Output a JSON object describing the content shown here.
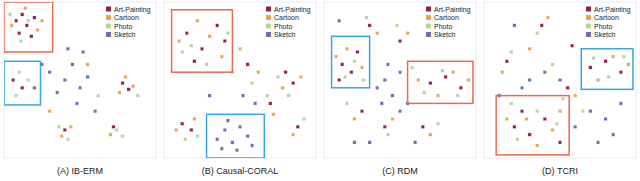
{
  "chart_data": [
    {
      "type": "scatter",
      "title": "(A) IB-ERM",
      "xlim": [
        0,
        100
      ],
      "ylim": [
        0,
        100
      ],
      "tick_labels": false,
      "legend": "upper right",
      "series": [
        {
          "name": "Art-Painting",
          "color": "#8c2352",
          "marker": "square",
          "x": [
            8,
            12,
            15,
            20,
            10,
            18,
            6,
            12,
            78,
            82,
            40,
            72
          ],
          "y": [
            88,
            92,
            85,
            90,
            80,
            78,
            50,
            45,
            48,
            44,
            18,
            20
          ]
        },
        {
          "name": "Cartoon",
          "color": "#e8a857",
          "marker": "square",
          "x": [
            5,
            22,
            14,
            25,
            80,
            85,
            76,
            38,
            44,
            70,
            55,
            30
          ],
          "y": [
            85,
            82,
            96,
            88,
            52,
            46,
            42,
            14,
            20,
            15,
            60,
            30
          ]
        },
        {
          "name": "Photo",
          "color": "#b5d89a",
          "marker": "square",
          "x": [
            16,
            11,
            4,
            10,
            16,
            8,
            42,
            36,
            78,
            74,
            62,
            88
          ],
          "y": [
            88,
            75,
            92,
            55,
            50,
            40,
            12,
            20,
            14,
            18,
            40,
            40
          ]
        },
        {
          "name": "Sketch",
          "color": "#6f6fb0",
          "marker": "square",
          "x": [
            30,
            40,
            45,
            50,
            35,
            55,
            48,
            20,
            60,
            42,
            52,
            25
          ],
          "y": [
            55,
            50,
            60,
            45,
            42,
            52,
            35,
            45,
            30,
            70,
            68,
            60
          ]
        }
      ],
      "highlights": [
        {
          "color": "#e86a50",
          "x": [
            0,
            32
          ],
          "y": [
            68,
            100
          ]
        },
        {
          "color": "#35a6de",
          "x": [
            0,
            24
          ],
          "y": [
            34,
            62
          ]
        }
      ]
    },
    {
      "type": "scatter",
      "title": "(B) Causal-CORAL",
      "xlim": [
        0,
        100
      ],
      "ylim": [
        0,
        100
      ],
      "tick_labels": false,
      "legend": "upper right",
      "series": [
        {
          "name": "Art-Painting",
          "color": "#8c2352",
          "marker": "square",
          "x": [
            15,
            25,
            35,
            20,
            80,
            85,
            12,
            18,
            55,
            40,
            88,
            70
          ],
          "y": [
            80,
            70,
            85,
            62,
            55,
            48,
            22,
            18,
            60,
            75,
            20,
            35
          ]
        },
        {
          "name": "Cartoon",
          "color": "#e8a857",
          "marker": "square",
          "x": [
            10,
            30,
            38,
            22,
            78,
            90,
            8,
            20,
            62,
            85,
            50,
            72
          ],
          "y": [
            75,
            78,
            65,
            88,
            45,
            52,
            18,
            25,
            55,
            15,
            70,
            28
          ]
        },
        {
          "name": "Photo",
          "color": "#b5d89a",
          "marker": "square",
          "x": [
            18,
            28,
            42,
            12,
            82,
            75,
            14,
            22,
            58,
            92,
            45,
            68
          ],
          "y": [
            72,
            60,
            80,
            68,
            40,
            52,
            12,
            14,
            48,
            25,
            55,
            40
          ]
        },
        {
          "name": "Sketch",
          "color": "#6f6fb0",
          "marker": "square",
          "x": [
            35,
            40,
            45,
            50,
            55,
            42,
            58,
            48,
            38,
            30,
            60,
            52
          ],
          "y": [
            12,
            18,
            10,
            20,
            14,
            24,
            8,
            5,
            6,
            40,
            35,
            40
          ]
        }
      ],
      "highlights": [
        {
          "color": "#e86a50",
          "x": [
            5,
            45
          ],
          "y": [
            55,
            95
          ]
        },
        {
          "color": "#35a6de",
          "x": [
            28,
            66
          ],
          "y": [
            0,
            28
          ]
        }
      ]
    },
    {
      "type": "scatter",
      "title": "(C) RDM",
      "xlim": [
        0,
        100
      ],
      "ylim": [
        0,
        100
      ],
      "tick_labels": false,
      "legend": "upper right",
      "series": [
        {
          "name": "Art-Painting",
          "color": "#8c2352",
          "marker": "square",
          "x": [
            12,
            18,
            22,
            10,
            70,
            80,
            90,
            40,
            30,
            50,
            65,
            25
          ],
          "y": [
            60,
            55,
            68,
            50,
            48,
            52,
            45,
            20,
            85,
            75,
            20,
            30
          ]
        },
        {
          "name": "Cartoon",
          "color": "#e8a857",
          "marker": "square",
          "x": [
            15,
            25,
            8,
            62,
            75,
            85,
            95,
            45,
            35,
            55,
            70,
            20
          ],
          "y": [
            70,
            58,
            65,
            50,
            40,
            55,
            50,
            25,
            80,
            80,
            15,
            25
          ]
        },
        {
          "name": "Photo",
          "color": "#b5d89a",
          "marker": "square",
          "x": [
            20,
            14,
            26,
            66,
            78,
            88,
            58,
            42,
            28,
            48,
            75,
            15
          ],
          "y": [
            62,
            52,
            50,
            42,
            56,
            40,
            58,
            15,
            90,
            85,
            22,
            35
          ]
        },
        {
          "name": "Sketch",
          "color": "#6f6fb0",
          "marker": "square",
          "x": [
            40,
            45,
            35,
            50,
            30,
            50,
            60,
            20,
            42,
            55,
            38,
            10
          ],
          "y": [
            50,
            40,
            45,
            55,
            10,
            30,
            10,
            10,
            60,
            35,
            35,
            88
          ]
        }
      ],
      "highlights": [
        {
          "color": "#35a6de",
          "x": [
            5,
            30
          ],
          "y": [
            45,
            78
          ]
        },
        {
          "color": "#e86a50",
          "x": [
            55,
            98
          ],
          "y": [
            35,
            62
          ]
        }
      ]
    },
    {
      "type": "scatter",
      "title": "(D) TCRI",
      "xlim": [
        0,
        100
      ],
      "ylim": [
        0,
        100
      ],
      "tick_labels": false,
      "legend": "upper right",
      "series": [
        {
          "name": "Art-Painting",
          "color": "#8c2352",
          "marker": "square",
          "x": [
            20,
            30,
            40,
            25,
            70,
            80,
            90,
            38,
            15,
            50,
            55,
            58
          ],
          "y": [
            20,
            15,
            25,
            30,
            58,
            62,
            55,
            85,
            62,
            10,
            45,
            72
          ]
        },
        {
          "name": "Cartoon",
          "color": "#e8a857",
          "marker": "square",
          "x": [
            15,
            28,
            45,
            35,
            75,
            85,
            95,
            42,
            12,
            50,
            60,
            30
          ],
          "y": [
            25,
            25,
            18,
            8,
            50,
            65,
            60,
            90,
            55,
            30,
            40,
            70
          ]
        },
        {
          "name": "Photo",
          "color": "#b5d89a",
          "marker": "square",
          "x": [
            22,
            35,
            48,
            18,
            72,
            82,
            92,
            35,
            18,
            52,
            65,
            45
          ],
          "y": [
            12,
            30,
            22,
            35,
            64,
            52,
            65,
            80,
            68,
            38,
            30,
            60
          ]
        },
        {
          "name": "Sketch",
          "color": "#6f6fb0",
          "marker": "square",
          "x": [
            30,
            40,
            25,
            50,
            60,
            70,
            80,
            90,
            20,
            10,
            75,
            85
          ],
          "y": [
            50,
            55,
            45,
            50,
            20,
            30,
            25,
            35,
            85,
            40,
            10,
            15
          ]
        }
      ],
      "highlights": [
        {
          "color": "#35a6de",
          "x": [
            64,
            98
          ],
          "y": [
            44,
            70
          ]
        },
        {
          "color": "#e86a50",
          "x": [
            8,
            56
          ],
          "y": [
            2,
            40
          ]
        }
      ]
    }
  ]
}
